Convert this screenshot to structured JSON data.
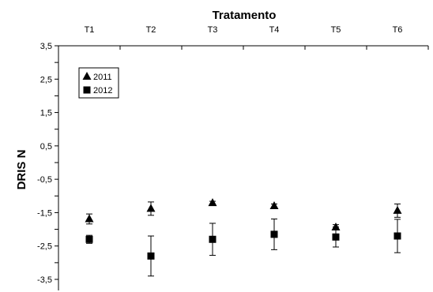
{
  "chart_data": {
    "type": "scatter",
    "title": "",
    "xlabel": "Tratamento",
    "ylabel": "DRIS N",
    "categories": [
      "T1",
      "T2",
      "T3",
      "T4",
      "T5",
      "T6"
    ],
    "yticks": [
      "3,5",
      "2,5",
      "1,5",
      "0,5",
      "-0,5",
      "-1,5",
      "-2,5",
      "-3,5"
    ],
    "ylim": [
      -3.5,
      3.5
    ],
    "grid": false,
    "legend_position": "top-left",
    "series": [
      {
        "name": "2011",
        "marker": "triangle",
        "values": [
          -1.69,
          -1.38,
          -1.21,
          -1.3,
          -1.94,
          -1.44
        ],
        "errors": [
          0.15,
          0.2,
          0.05,
          0.06,
          0.08,
          0.2
        ]
      },
      {
        "name": "2012",
        "marker": "square",
        "values": [
          -2.3,
          -2.8,
          -2.3,
          -2.15,
          -2.23,
          -2.2
        ],
        "errors": [
          0.12,
          0.6,
          0.48,
          0.46,
          0.3,
          0.5
        ]
      }
    ],
    "color": "#000000"
  }
}
